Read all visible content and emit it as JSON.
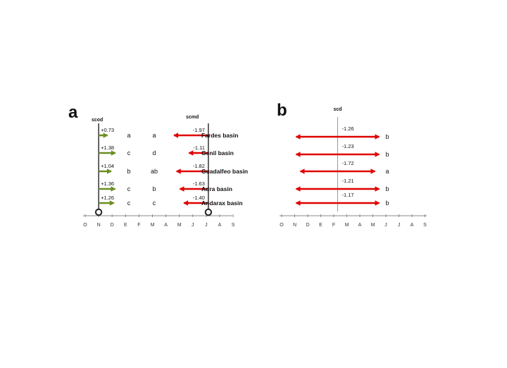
{
  "chart_data": [
    {
      "type": "arrow-timeline",
      "panel_label": "a",
      "months": [
        "O",
        "N",
        "D",
        "E",
        "F",
        "M",
        "A",
        "M",
        "J",
        "J",
        "A",
        "S"
      ],
      "scod": {
        "label": "scod",
        "start_month_index": 1,
        "color": "#6b8e23",
        "values": [
          "+0.73",
          "+1.38",
          "+1.04",
          "+1.36",
          "+1.26"
        ],
        "groups": [
          "a",
          "c",
          "b",
          "c",
          "c"
        ]
      },
      "scmd": {
        "label": "scmd",
        "start_month_index": 9,
        "color": "#e00000",
        "values": [
          "-1.97",
          "-1.11",
          "-1.82",
          "-1.63",
          "-1.40"
        ],
        "groups": [
          "a",
          "d",
          "ab",
          "b",
          "c"
        ]
      },
      "basins": [
        "Fardes basin",
        "Genil basin",
        "Guadalfeo basin",
        "Adra basin",
        "Andarax basin"
      ]
    },
    {
      "type": "arrow-timeline",
      "panel_label": "b",
      "months": [
        "O",
        "N",
        "D",
        "E",
        "F",
        "M",
        "A",
        "M",
        "J",
        "J",
        "A",
        "S"
      ],
      "scd": {
        "label": "scd",
        "center_month_index": 5,
        "color": "#e00000",
        "values": [
          "-1.26",
          "-1.23",
          "-1.72",
          "-1.21",
          "-1.17"
        ],
        "groups": [
          "b",
          "b",
          "a",
          "b",
          "b"
        ]
      }
    }
  ]
}
